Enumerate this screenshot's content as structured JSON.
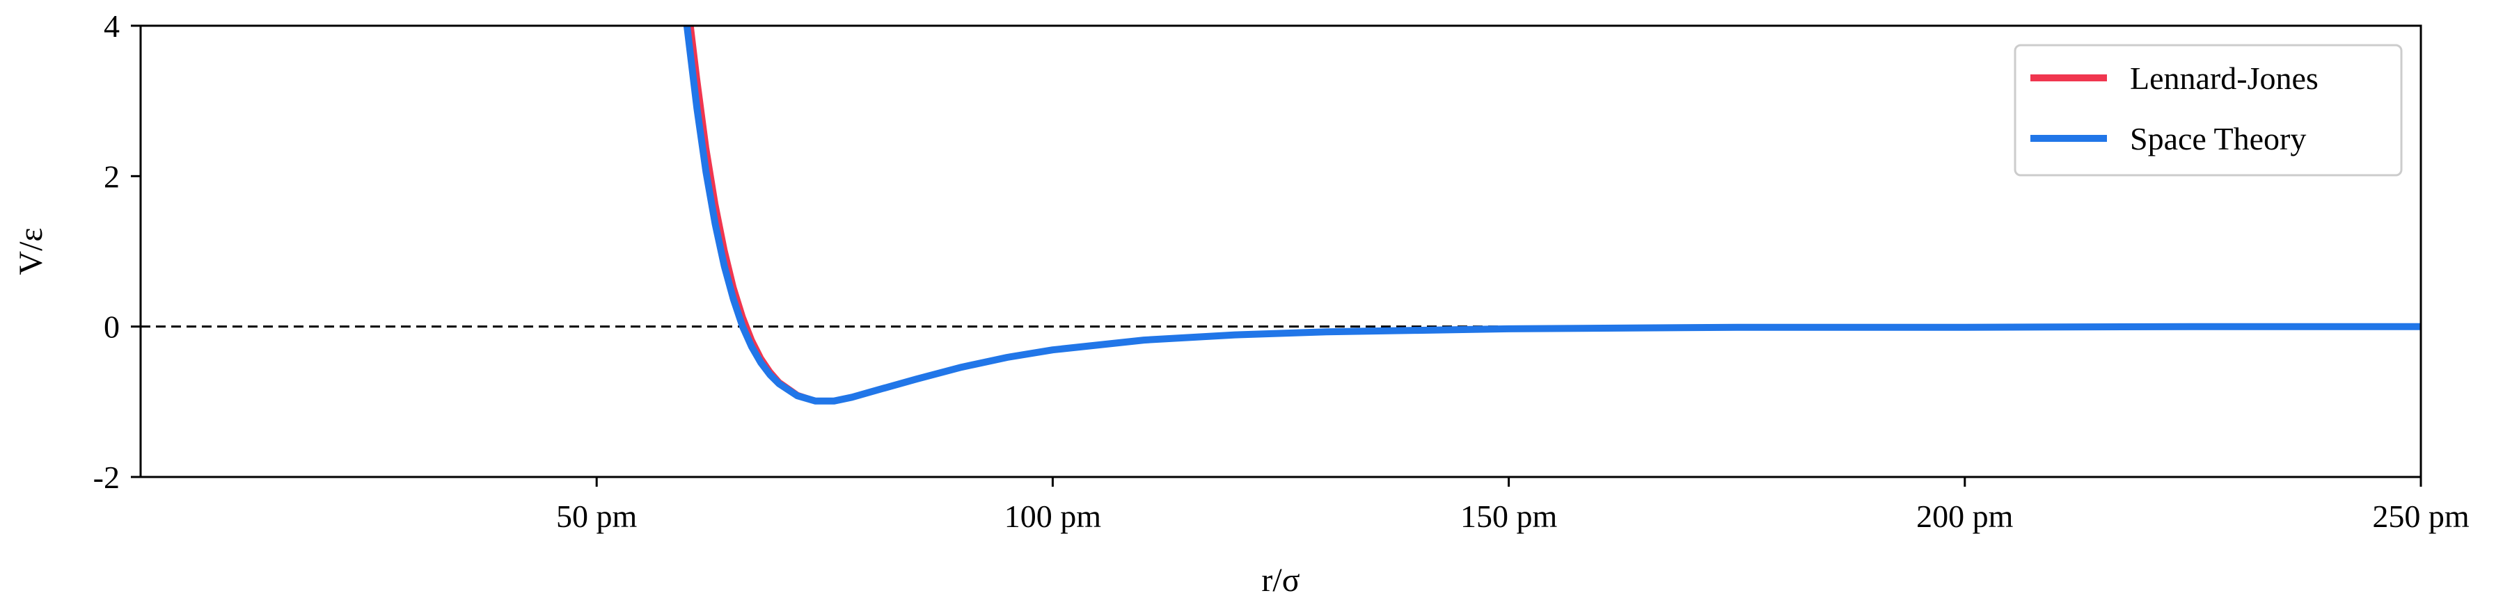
{
  "chart_data": {
    "type": "line",
    "title": "",
    "xlabel": "r/σ",
    "ylabel": "V/ε",
    "xlim": [
      0,
      250
    ],
    "ylim": [
      -2,
      4
    ],
    "x_ticks": [
      50,
      100,
      150,
      200,
      250
    ],
    "x_tick_labels": [
      "50 pm",
      "100 pm",
      "150 pm",
      "200 pm",
      "250 pm"
    ],
    "y_ticks": [
      -2,
      0,
      2,
      4
    ],
    "y_tick_labels": [
      "-2",
      "0",
      "2",
      "4"
    ],
    "grid": false,
    "legend_position": "top-right",
    "reference_line": {
      "y": 0,
      "style": "dashed",
      "color": "#000000"
    },
    "series": [
      {
        "name": "Lennard-Jones",
        "color": "#f0364f",
        "x": [
          60.3,
          61,
          62,
          63,
          64,
          65,
          66,
          67,
          68,
          69,
          70,
          72,
          74,
          76,
          78,
          80,
          85,
          90,
          95,
          100,
          110,
          120,
          130,
          140,
          150,
          175,
          200,
          225,
          250
        ],
        "y": [
          4.0,
          3.3,
          2.38,
          1.63,
          1.02,
          0.52,
          0.13,
          -0.18,
          -0.42,
          -0.6,
          -0.74,
          -0.91,
          -0.99,
          -0.99,
          -0.94,
          -0.87,
          -0.7,
          -0.54,
          -0.41,
          -0.31,
          -0.18,
          -0.11,
          -0.07,
          -0.05,
          -0.03,
          -0.01,
          -0.01,
          0.0,
          0.0
        ]
      },
      {
        "name": "Space Theory",
        "color": "#2176e8",
        "x": [
          59.9,
          61,
          62,
          63,
          64,
          65,
          66,
          67,
          68,
          69,
          70,
          72,
          74,
          76,
          78,
          80,
          85,
          90,
          95,
          100,
          110,
          120,
          130,
          140,
          150,
          175,
          200,
          225,
          250
        ],
        "y": [
          4.0,
          2.9,
          2.05,
          1.36,
          0.8,
          0.36,
          0.0,
          -0.27,
          -0.48,
          -0.64,
          -0.76,
          -0.92,
          -0.99,
          -0.99,
          -0.94,
          -0.87,
          -0.7,
          -0.54,
          -0.41,
          -0.31,
          -0.18,
          -0.11,
          -0.07,
          -0.05,
          -0.03,
          -0.01,
          -0.01,
          0.0,
          0.0
        ]
      }
    ]
  }
}
